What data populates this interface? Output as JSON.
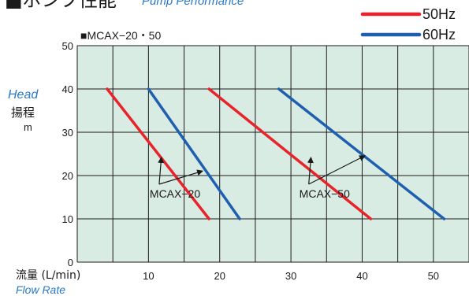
{
  "heading": {
    "title_jp": "■ポンプ性能",
    "title_en": "Pump Performance"
  },
  "chart_data": {
    "type": "line",
    "model_label": "■MCAX−20・50",
    "ylabel_en": "Head",
    "ylabel_jp": "揚程",
    "ylabel_unit": "m",
    "xlabel_jp": "流量 (L/min)",
    "xlabel_en": "Flow Rate",
    "xlim": [
      0,
      55
    ],
    "ylim": [
      0,
      50
    ],
    "x_ticks": [
      10,
      20,
      30,
      40,
      50
    ],
    "y_ticks": [
      0,
      10,
      20,
      30,
      40,
      50
    ],
    "grid": true,
    "legend_position": "top-right",
    "legend": [
      {
        "label": "50Hz",
        "color": "#e8232a"
      },
      {
        "label": "60Hz",
        "color": "#1f5fb0"
      }
    ],
    "series": [
      {
        "name": "MCAX-20 50Hz",
        "model": "MCAX-20",
        "hz": "50Hz",
        "color": "#e8232a",
        "points": [
          [
            4.2,
            40
          ],
          [
            18.5,
            10
          ]
        ]
      },
      {
        "name": "MCAX-20 60Hz",
        "model": "MCAX-20",
        "hz": "60Hz",
        "color": "#1f5fb0",
        "points": [
          [
            10,
            40
          ],
          [
            22.8,
            10
          ]
        ]
      },
      {
        "name": "MCAX-50 50Hz",
        "model": "MCAX-50",
        "hz": "50Hz",
        "color": "#e8232a",
        "points": [
          [
            18.5,
            40
          ],
          [
            41.2,
            10
          ]
        ]
      },
      {
        "name": "MCAX-50 60Hz",
        "model": "MCAX-50",
        "hz": "60Hz",
        "color": "#1f5fb0",
        "points": [
          [
            28.3,
            40
          ],
          [
            51.5,
            10
          ]
        ]
      }
    ],
    "annotations": [
      {
        "text": "MCAX−20",
        "anchor": [
          11.5,
          18
        ],
        "targets": [
          [
            11.8,
            24
          ],
          [
            17.5,
            21
          ]
        ]
      },
      {
        "text": "MCAX−50",
        "anchor": [
          32.5,
          18
        ],
        "targets": [
          [
            32.8,
            24
          ],
          [
            40.3,
            24.5
          ]
        ]
      }
    ]
  }
}
